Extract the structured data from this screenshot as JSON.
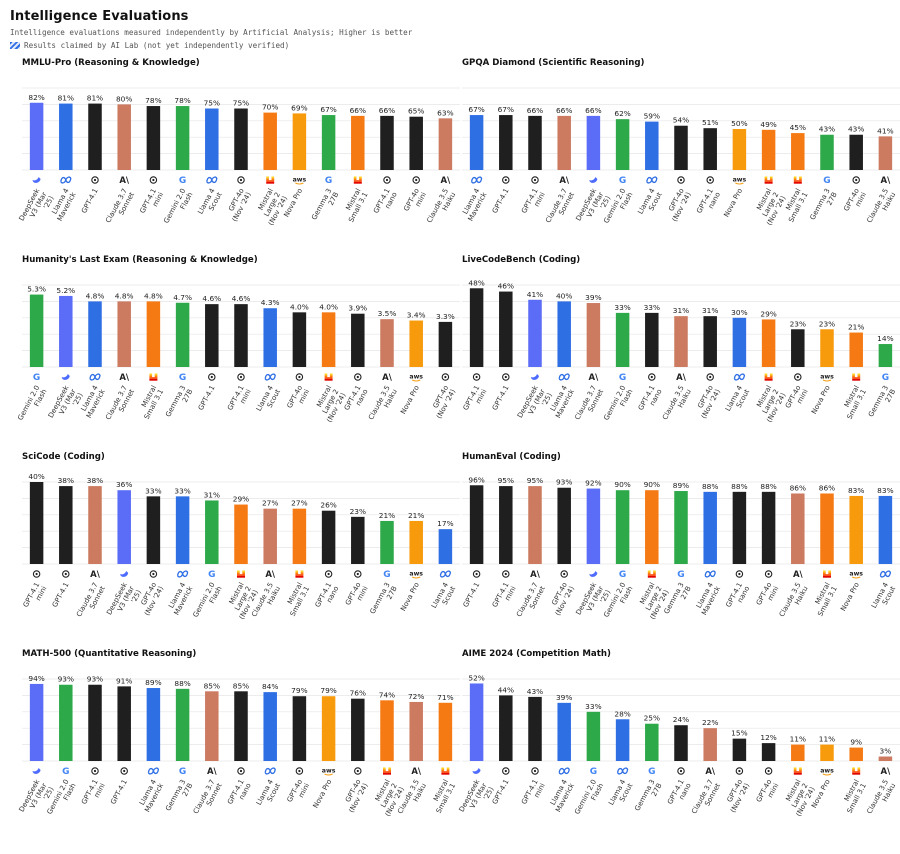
{
  "header": {
    "title": "Intelligence Evaluations",
    "subtitle": "Intelligence evaluations measured independently by Artificial Analysis; Higher is better",
    "legend_text": "Results claimed by AI Lab (not yet independently verified)"
  },
  "colors": {
    "DeepSeek": "#5b6cf6",
    "Meta": "#2f6fe4",
    "OpenAI": "#1f1f1f",
    "Anthropic": "#cc7a60",
    "Google": "#2ea94a",
    "Mistral": "#f57a14",
    "Amazon": "#f79a0c"
  },
  "chart_data": [
    {
      "type": "bar",
      "title": "MMLU-Pro (Reasoning & Knowledge)",
      "ylim": [
        0,
        100
      ],
      "grid": true,
      "categories": [
        "DeepSeek V3 (Mar '25)",
        "Llama 4 Maverick",
        "GPT-4.1",
        "Claude 3.7 Sonnet",
        "GPT-4.1 mini",
        "Gemini 2.0 Flash",
        "Llama 4 Scout",
        "GPT-4o (Nov '24)",
        "Mistral Large 2 (Nov '24)",
        "Nova Pro",
        "Gemma 3 27B",
        "Mistral Small 3.1",
        "GPT-4.1 nano",
        "GPT-4o mini",
        "Claude 3.5 Haiku"
      ],
      "values": [
        82,
        81,
        81,
        80,
        78,
        78,
        75,
        75,
        70,
        69,
        67,
        66,
        66,
        65,
        63
      ],
      "labels": [
        "82%",
        "81%",
        "81%",
        "80%",
        "78%",
        "78%",
        "75%",
        "75%",
        "70%",
        "69%",
        "67%",
        "66%",
        "66%",
        "65%",
        "63%"
      ],
      "providers": [
        "DeepSeek",
        "Meta",
        "OpenAI",
        "Anthropic",
        "OpenAI",
        "Google",
        "Meta",
        "OpenAI",
        "Mistral",
        "Amazon",
        "Google",
        "Mistral",
        "OpenAI",
        "OpenAI",
        "Anthropic"
      ]
    },
    {
      "type": "bar",
      "title": "GPQA Diamond (Scientific Reasoning)",
      "ylim": [
        0,
        100
      ],
      "grid": true,
      "categories": [
        "Llama 4 Maverick",
        "GPT-4.1",
        "GPT-4.1 mini",
        "Claude 3.7 Sonnet",
        "DeepSeek V3 (Mar '25)",
        "Gemini 2.0 Flash",
        "Llama 4 Scout",
        "GPT-4o (Nov '24)",
        "GPT-4.1 nano",
        "Nova Pro",
        "Mistral Large 2 (Nov '24)",
        "Mistral Small 3.1",
        "Gemma 3 27B",
        "GPT-4o mini",
        "Claude 3.5 Haiku"
      ],
      "values": [
        67,
        67,
        66,
        66,
        66,
        62,
        59,
        54,
        51,
        50,
        49,
        45,
        43,
        43,
        41
      ],
      "labels": [
        "67%",
        "67%",
        "66%",
        "66%",
        "66%",
        "62%",
        "59%",
        "54%",
        "51%",
        "50%",
        "49%",
        "45%",
        "43%",
        "43%",
        "41%"
      ],
      "providers": [
        "Meta",
        "OpenAI",
        "OpenAI",
        "Anthropic",
        "DeepSeek",
        "Google",
        "Meta",
        "OpenAI",
        "OpenAI",
        "Amazon",
        "Mistral",
        "Mistral",
        "Google",
        "OpenAI",
        "Anthropic"
      ]
    },
    {
      "type": "bar",
      "title": "Humanity's Last Exam (Reasoning & Knowledge)",
      "ylim": [
        0,
        6
      ],
      "grid": true,
      "categories": [
        "Gemini 2.0 Flash",
        "DeepSeek V3 (Mar '25)",
        "Llama 4 Maverick",
        "Claude 3.7 Sonnet",
        "Mistral Small 3.1",
        "Gemma 3 27B",
        "GPT-4.1",
        "GPT-4.1 mini",
        "Llama 4 Scout",
        "GPT-4o mini",
        "Mistral Large 2 (Nov '24)",
        "GPT-4.1 nano",
        "Claude 3.5 Haiku",
        "Nova Pro",
        "GPT-4o (Nov '24)"
      ],
      "values": [
        5.3,
        5.2,
        4.8,
        4.8,
        4.8,
        4.7,
        4.6,
        4.6,
        4.3,
        4.0,
        4.0,
        3.9,
        3.5,
        3.4,
        3.3
      ],
      "labels": [
        "5.3%",
        "5.2%",
        "4.8%",
        "4.8%",
        "4.8%",
        "4.7%",
        "4.6%",
        "4.6%",
        "4.3%",
        "4.0%",
        "4.0%",
        "3.9%",
        "3.5%",
        "3.4%",
        "3.3%"
      ],
      "providers": [
        "Google",
        "DeepSeek",
        "Meta",
        "Anthropic",
        "Mistral",
        "Google",
        "OpenAI",
        "OpenAI",
        "Meta",
        "OpenAI",
        "Mistral",
        "OpenAI",
        "Anthropic",
        "Amazon",
        "OpenAI"
      ]
    },
    {
      "type": "bar",
      "title": "LiveCodeBench (Coding)",
      "ylim": [
        0,
        50
      ],
      "grid": true,
      "categories": [
        "GPT-4.1 mini",
        "GPT-4.1",
        "DeepSeek V3 (Mar '25)",
        "Llama 4 Maverick",
        "Claude 3.7 Sonnet",
        "Gemini 2.0 Flash",
        "GPT-4.1 nano",
        "Claude 3.5 Haiku",
        "GPT-4o (Nov '24)",
        "Llama 4 Scout",
        "Mistral Large 2 (Nov '24)",
        "GPT-4o mini",
        "Nova Pro",
        "Mistral Small 3.1",
        "Gemma 3 27B"
      ],
      "values": [
        48,
        46,
        41,
        40,
        39,
        33,
        33,
        31,
        31,
        30,
        29,
        23,
        23,
        21,
        14
      ],
      "labels": [
        "48%",
        "46%",
        "41%",
        "40%",
        "39%",
        "33%",
        "33%",
        "31%",
        "31%",
        "30%",
        "29%",
        "23%",
        "23%",
        "21%",
        "14%"
      ],
      "providers": [
        "OpenAI",
        "OpenAI",
        "DeepSeek",
        "Meta",
        "Anthropic",
        "Google",
        "OpenAI",
        "Anthropic",
        "OpenAI",
        "Meta",
        "Mistral",
        "OpenAI",
        "Amazon",
        "Mistral",
        "Google"
      ]
    },
    {
      "type": "bar",
      "title": "SciCode (Coding)",
      "ylim": [
        0,
        40
      ],
      "grid": true,
      "categories": [
        "GPT-4.1 mini",
        "GPT-4.1",
        "Claude 3.7 Sonnet",
        "DeepSeek V3 (Mar '25)",
        "GPT-4o (Nov '24)",
        "Llama 4 Maverick",
        "Gemini 2.0 Flash",
        "Mistral Large 2 (Nov '24)",
        "Claude 3.5 Haiku",
        "Mistral Small 3.1",
        "GPT-4.1 nano",
        "GPT-4o mini",
        "Gemma 3 27B",
        "Nova Pro",
        "Llama 4 Scout"
      ],
      "values": [
        40,
        38,
        38,
        36,
        33,
        33,
        31,
        29,
        27,
        27,
        26,
        23,
        21,
        21,
        17
      ],
      "labels": [
        "40%",
        "38%",
        "38%",
        "36%",
        "33%",
        "33%",
        "31%",
        "29%",
        "27%",
        "27%",
        "26%",
        "23%",
        "21%",
        "21%",
        "17%"
      ],
      "providers": [
        "OpenAI",
        "OpenAI",
        "Anthropic",
        "DeepSeek",
        "OpenAI",
        "Meta",
        "Google",
        "Mistral",
        "Anthropic",
        "Mistral",
        "OpenAI",
        "OpenAI",
        "Google",
        "Amazon",
        "Meta"
      ]
    },
    {
      "type": "bar",
      "title": "HumanEval (Coding)",
      "ylim": [
        0,
        100
      ],
      "grid": true,
      "categories": [
        "GPT-4.1",
        "GPT-4.1 mini",
        "Claude 3.7 Sonnet",
        "GPT-4o (Nov '24)",
        "DeepSeek V3 (Mar '25)",
        "Gemini 2.0 Flash",
        "Mistral Large 2 (Nov '24)",
        "Gemma 3 27B",
        "Llama 4 Maverick",
        "GPT-4.1 nano",
        "GPT-4o mini",
        "Claude 3.5 Haiku",
        "Mistral Small 3.1",
        "Nova Pro",
        "Llama 4 Scout"
      ],
      "values": [
        96,
        95,
        95,
        93,
        92,
        90,
        90,
        89,
        88,
        88,
        88,
        86,
        86,
        83,
        83
      ],
      "labels": [
        "96%",
        "95%",
        "95%",
        "93%",
        "92%",
        "90%",
        "90%",
        "89%",
        "88%",
        "88%",
        "88%",
        "86%",
        "86%",
        "83%",
        "83%"
      ],
      "providers": [
        "OpenAI",
        "OpenAI",
        "Anthropic",
        "OpenAI",
        "DeepSeek",
        "Google",
        "Mistral",
        "Google",
        "Meta",
        "OpenAI",
        "OpenAI",
        "Anthropic",
        "Mistral",
        "Amazon",
        "Meta"
      ]
    },
    {
      "type": "bar",
      "title": "MATH-500 (Quantitative Reasoning)",
      "ylim": [
        0,
        100
      ],
      "grid": true,
      "categories": [
        "DeepSeek V3 (Mar '25)",
        "Gemini 2.0 Flash",
        "GPT-4.1 mini",
        "GPT-4.1",
        "Llama 4 Maverick",
        "Gemma 3 27B",
        "Claude 3.7 Sonnet",
        "GPT-4.1 nano",
        "Llama 4 Scout",
        "GPT-4o mini",
        "Nova Pro",
        "GPT-4o (Nov '24)",
        "Mistral Large 2 (Nov '24)",
        "Claude 3.5 Haiku",
        "Mistral Small 3.1"
      ],
      "values": [
        94,
        93,
        93,
        91,
        89,
        88,
        85,
        85,
        84,
        79,
        79,
        76,
        74,
        72,
        71
      ],
      "labels": [
        "94%",
        "93%",
        "93%",
        "91%",
        "89%",
        "88%",
        "85%",
        "85%",
        "84%",
        "79%",
        "79%",
        "76%",
        "74%",
        "72%",
        "71%"
      ],
      "providers": [
        "DeepSeek",
        "Google",
        "OpenAI",
        "OpenAI",
        "Meta",
        "Google",
        "Anthropic",
        "OpenAI",
        "Meta",
        "OpenAI",
        "Amazon",
        "OpenAI",
        "Mistral",
        "Anthropic",
        "Mistral"
      ]
    },
    {
      "type": "bar",
      "title": "AIME 2024 (Competition Math)",
      "ylim": [
        0,
        55
      ],
      "grid": true,
      "categories": [
        "DeepSeek V3 (Mar '25)",
        "GPT-4.1",
        "GPT-4.1 mini",
        "Llama 4 Maverick",
        "Gemini 2.0 Flash",
        "Llama 4 Scout",
        "Gemma 3 27B",
        "GPT-4.1 nano",
        "Claude 3.7 Sonnet",
        "GPT-4o (Nov '24)",
        "GPT-4o mini",
        "Mistral Large 2 (Nov '24)",
        "Nova Pro",
        "Mistral Small 3.1",
        "Claude 3.5 Haiku"
      ],
      "values": [
        52,
        44,
        43,
        39,
        33,
        28,
        25,
        24,
        22,
        15,
        12,
        11,
        11,
        9,
        3
      ],
      "labels": [
        "52%",
        "44%",
        "43%",
        "39%",
        "33%",
        "28%",
        "25%",
        "24%",
        "22%",
        "15%",
        "12%",
        "11%",
        "11%",
        "9%",
        "3%"
      ],
      "providers": [
        "DeepSeek",
        "OpenAI",
        "OpenAI",
        "Meta",
        "Google",
        "Meta",
        "Google",
        "OpenAI",
        "Anthropic",
        "OpenAI",
        "OpenAI",
        "Mistral",
        "Amazon",
        "Mistral",
        "Anthropic"
      ]
    }
  ]
}
